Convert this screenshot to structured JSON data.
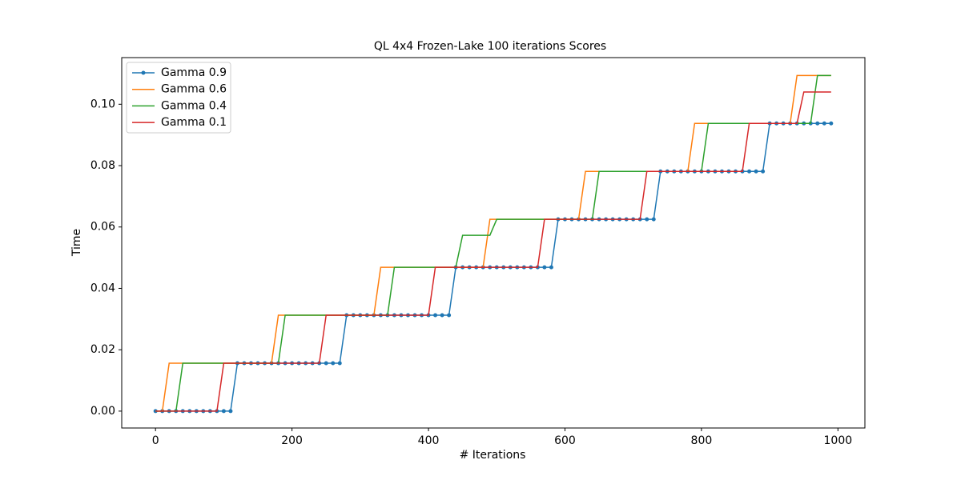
{
  "chart_data": {
    "type": "line",
    "title": "QL 4x4 Frozen-Lake 100 iterations  Scores",
    "x_label": "# Iterations",
    "y_label": "Time",
    "x": [
      0,
      10,
      20,
      30,
      40,
      50,
      60,
      70,
      80,
      90,
      100,
      110,
      120,
      130,
      140,
      150,
      160,
      170,
      180,
      190,
      200,
      210,
      220,
      230,
      240,
      250,
      260,
      270,
      280,
      290,
      300,
      310,
      320,
      330,
      340,
      350,
      360,
      370,
      380,
      390,
      400,
      410,
      420,
      430,
      440,
      450,
      460,
      470,
      480,
      490,
      500,
      510,
      520,
      530,
      540,
      550,
      560,
      570,
      580,
      590,
      600,
      610,
      620,
      630,
      640,
      650,
      660,
      670,
      680,
      690,
      700,
      710,
      720,
      730,
      740,
      750,
      760,
      770,
      780,
      790,
      800,
      810,
      820,
      830,
      840,
      850,
      860,
      870,
      880,
      890,
      900,
      910,
      920,
      930,
      940,
      950,
      960,
      970,
      980,
      990
    ],
    "series": [
      {
        "name": "Gamma 0.9",
        "color": "#1f77b4",
        "marker": "o",
        "values": [
          0,
          0,
          0,
          0,
          0,
          0,
          0,
          0,
          0,
          0,
          0,
          0,
          0.015625,
          0.015625,
          0.015625,
          0.015625,
          0.015625,
          0.015625,
          0.015625,
          0.015625,
          0.015625,
          0.015625,
          0.015625,
          0.015625,
          0.015625,
          0.015625,
          0.015625,
          0.015625,
          0.03125,
          0.03125,
          0.03125,
          0.03125,
          0.03125,
          0.03125,
          0.03125,
          0.03125,
          0.03125,
          0.03125,
          0.03125,
          0.03125,
          0.03125,
          0.03125,
          0.03125,
          0.03125,
          0.046875,
          0.046875,
          0.046875,
          0.046875,
          0.046875,
          0.046875,
          0.046875,
          0.046875,
          0.046875,
          0.046875,
          0.046875,
          0.046875,
          0.046875,
          0.046875,
          0.046875,
          0.0625,
          0.0625,
          0.0625,
          0.0625,
          0.0625,
          0.0625,
          0.0625,
          0.0625,
          0.0625,
          0.0625,
          0.0625,
          0.0625,
          0.0625,
          0.0625,
          0.0625,
          0.078125,
          0.078125,
          0.078125,
          0.078125,
          0.078125,
          0.078125,
          0.078125,
          0.078125,
          0.078125,
          0.078125,
          0.078125,
          0.078125,
          0.078125,
          0.078125,
          0.078125,
          0.078125,
          0.09375,
          0.09375,
          0.09375,
          0.09375,
          0.09375,
          0.09375,
          0.09375,
          0.09375,
          0.09375,
          0.09375
        ]
      },
      {
        "name": "Gamma 0.6",
        "color": "#ff7f0e",
        "values": [
          0,
          0,
          0.015625,
          0.015625,
          0.015625,
          0.015625,
          0.015625,
          0.015625,
          0.015625,
          0.015625,
          0.015625,
          0.015625,
          0.015625,
          0.015625,
          0.015625,
          0.015625,
          0.015625,
          0.015625,
          0.03125,
          0.03125,
          0.03125,
          0.03125,
          0.03125,
          0.03125,
          0.03125,
          0.03125,
          0.03125,
          0.03125,
          0.03125,
          0.03125,
          0.03125,
          0.03125,
          0.03125,
          0.046875,
          0.046875,
          0.046875,
          0.046875,
          0.046875,
          0.046875,
          0.046875,
          0.046875,
          0.046875,
          0.046875,
          0.046875,
          0.046875,
          0.046875,
          0.046875,
          0.046875,
          0.046875,
          0.0625,
          0.0625,
          0.0625,
          0.0625,
          0.0625,
          0.0625,
          0.0625,
          0.0625,
          0.0625,
          0.0625,
          0.0625,
          0.0625,
          0.0625,
          0.0625,
          0.078125,
          0.078125,
          0.078125,
          0.078125,
          0.078125,
          0.078125,
          0.078125,
          0.078125,
          0.078125,
          0.078125,
          0.078125,
          0.078125,
          0.078125,
          0.078125,
          0.078125,
          0.078125,
          0.09375,
          0.09375,
          0.09375,
          0.09375,
          0.09375,
          0.09375,
          0.09375,
          0.09375,
          0.09375,
          0.09375,
          0.09375,
          0.09375,
          0.09375,
          0.09375,
          0.09375,
          0.109375,
          0.109375,
          0.109375,
          0.109375,
          0.109375,
          0.109375
        ]
      },
      {
        "name": "Gamma 0.4",
        "color": "#2ca02c",
        "values": [
          0,
          0,
          0,
          0,
          0.015625,
          0.015625,
          0.015625,
          0.015625,
          0.015625,
          0.015625,
          0.015625,
          0.015625,
          0.015625,
          0.015625,
          0.015625,
          0.015625,
          0.015625,
          0.015625,
          0.015625,
          0.03125,
          0.03125,
          0.03125,
          0.03125,
          0.03125,
          0.03125,
          0.03125,
          0.03125,
          0.03125,
          0.03125,
          0.03125,
          0.03125,
          0.03125,
          0.03125,
          0.03125,
          0.03125,
          0.046875,
          0.046875,
          0.046875,
          0.046875,
          0.046875,
          0.046875,
          0.046875,
          0.046875,
          0.046875,
          0.046875,
          0.0573,
          0.0573,
          0.0573,
          0.0573,
          0.0573,
          0.0625,
          0.0625,
          0.0625,
          0.0625,
          0.0625,
          0.0625,
          0.0625,
          0.0625,
          0.0625,
          0.0625,
          0.0625,
          0.0625,
          0.0625,
          0.0625,
          0.0625,
          0.078125,
          0.078125,
          0.078125,
          0.078125,
          0.078125,
          0.078125,
          0.078125,
          0.078125,
          0.078125,
          0.078125,
          0.078125,
          0.078125,
          0.078125,
          0.078125,
          0.078125,
          0.078125,
          0.09375,
          0.09375,
          0.09375,
          0.09375,
          0.09375,
          0.09375,
          0.09375,
          0.09375,
          0.09375,
          0.09375,
          0.09375,
          0.09375,
          0.09375,
          0.09375,
          0.09375,
          0.09375,
          0.109375,
          0.109375,
          0.109375
        ]
      },
      {
        "name": "Gamma 0.1",
        "color": "#d62728",
        "values": [
          0,
          0,
          0,
          0,
          0,
          0,
          0,
          0,
          0,
          0,
          0.015625,
          0.015625,
          0.015625,
          0.015625,
          0.015625,
          0.015625,
          0.015625,
          0.015625,
          0.015625,
          0.015625,
          0.015625,
          0.015625,
          0.015625,
          0.015625,
          0.015625,
          0.03125,
          0.03125,
          0.03125,
          0.03125,
          0.03125,
          0.03125,
          0.03125,
          0.03125,
          0.03125,
          0.03125,
          0.03125,
          0.03125,
          0.03125,
          0.03125,
          0.03125,
          0.03125,
          0.046875,
          0.046875,
          0.046875,
          0.046875,
          0.046875,
          0.046875,
          0.046875,
          0.046875,
          0.046875,
          0.046875,
          0.046875,
          0.046875,
          0.046875,
          0.046875,
          0.046875,
          0.046875,
          0.0625,
          0.0625,
          0.0625,
          0.0625,
          0.0625,
          0.0625,
          0.0625,
          0.0625,
          0.0625,
          0.0625,
          0.0625,
          0.0625,
          0.0625,
          0.0625,
          0.0625,
          0.078125,
          0.078125,
          0.078125,
          0.078125,
          0.078125,
          0.078125,
          0.078125,
          0.078125,
          0.078125,
          0.078125,
          0.078125,
          0.078125,
          0.078125,
          0.078125,
          0.078125,
          0.09375,
          0.09375,
          0.09375,
          0.09375,
          0.09375,
          0.09375,
          0.09375,
          0.09375,
          0.104,
          0.104,
          0.104,
          0.104,
          0.104
        ]
      }
    ],
    "xlim": [
      -49.5,
      1039.5
    ],
    "xticks": [
      0,
      200,
      400,
      600,
      800,
      1000
    ],
    "ylim": [
      -0.0055,
      0.1152
    ],
    "yticks": [
      {
        "value": 0,
        "label": "0.00"
      },
      {
        "value": 0.02,
        "label": "0.02"
      },
      {
        "value": 0.04,
        "label": "0.04"
      },
      {
        "value": 0.06,
        "label": "0.06"
      },
      {
        "value": 0.08,
        "label": "0.08"
      },
      {
        "value": 0.1,
        "label": "0.10"
      }
    ],
    "grid": false,
    "legend": "upper left"
  }
}
